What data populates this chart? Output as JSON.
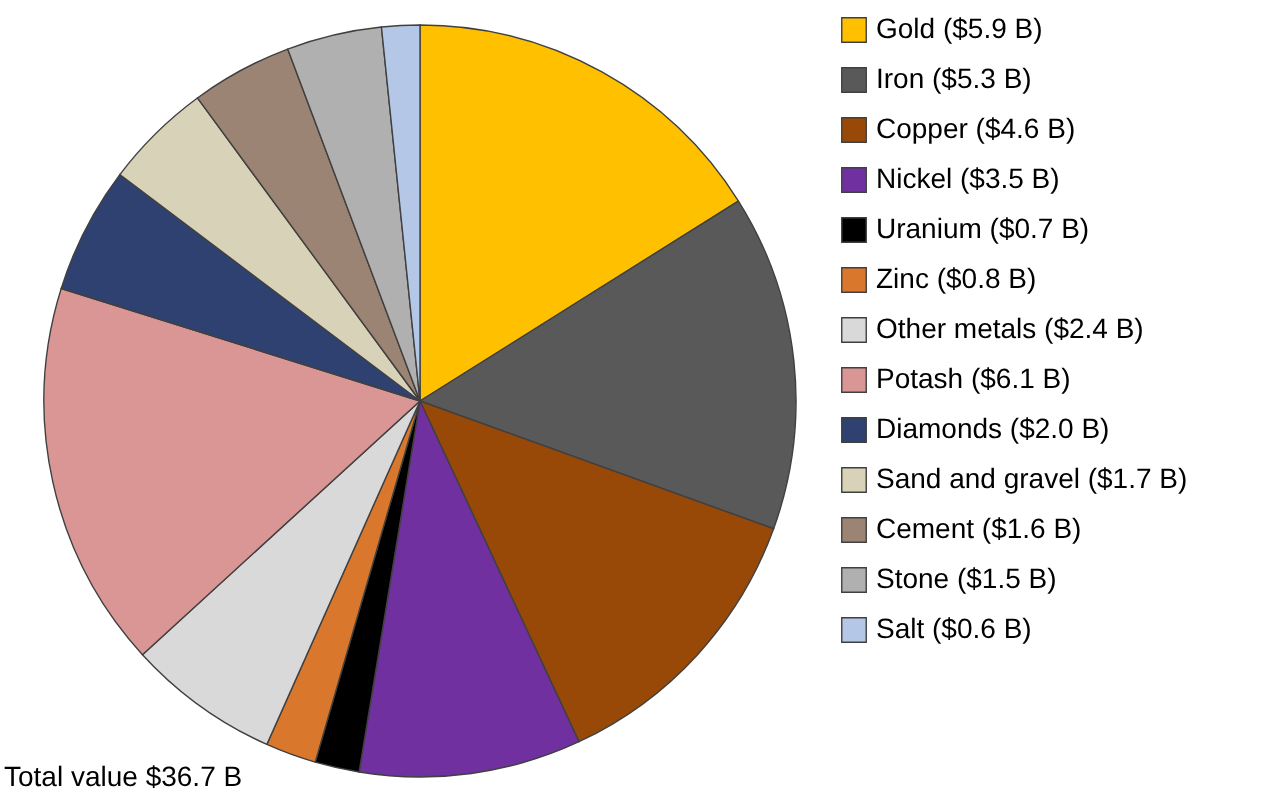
{
  "chart_data": {
    "type": "pie",
    "categories": [
      "Gold ($5.9 B)",
      "Iron ($5.3 B)",
      "Copper ($4.6 B)",
      "Nickel ($3.5 B)",
      "Uranium ($0.7 B)",
      "Zinc ($0.8 B)",
      "Other metals ($2.4 B)",
      "Potash ($6.1 B)",
      "Diamonds ($2.0 B)",
      "Sand and gravel ($1.7 B)",
      "Cement ($1.6 B)",
      "Stone ($1.5 B)",
      "Salt ($0.6 B)"
    ],
    "values": [
      5.9,
      5.3,
      4.6,
      3.5,
      0.7,
      0.8,
      2.4,
      6.1,
      2.0,
      1.7,
      1.6,
      1.5,
      0.6
    ],
    "colors": [
      "#ffc000",
      "#595959",
      "#984807",
      "#7030a0",
      "#000000",
      "#d9782d",
      "#d9d9d9",
      "#d99694",
      "#2e4170",
      "#d8d2b8",
      "#9c8474",
      "#b0b0b0",
      "#b4c7e7"
    ],
    "legend": "right",
    "annotations": [
      "Total value $36.7 B"
    ]
  }
}
